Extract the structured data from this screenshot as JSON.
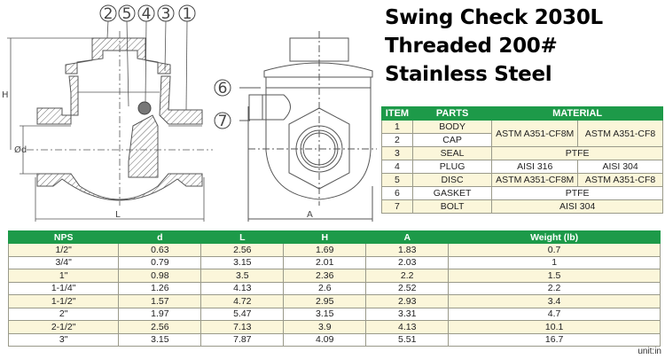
{
  "title": {
    "line1": "Swing Check 2030L",
    "line2": "Threaded 200#",
    "line3": "Stainless Steel"
  },
  "drawing": {
    "callouts_section": [
      "2",
      "5",
      "4",
      "3",
      "1"
    ],
    "callouts_side": [
      "6",
      "7"
    ],
    "dim_labels": {
      "H": "H",
      "d": "Ød",
      "L": "L",
      "A": "A"
    }
  },
  "colors": {
    "header_green": "#1d9a49",
    "row_cream": "#fbf6da"
  },
  "materials_table": {
    "headers": [
      "ITEM",
      "PARTS",
      "MATERIAL"
    ],
    "rows": [
      {
        "item": "1",
        "part": "BODY"
      },
      {
        "item": "2",
        "part": "CAP"
      },
      {
        "item": "3",
        "part": "SEAL"
      },
      {
        "item": "4",
        "part": "PLUG"
      },
      {
        "item": "5",
        "part": "DISC"
      },
      {
        "item": "6",
        "part": "GASKET"
      },
      {
        "item": "7",
        "part": "BOLT"
      }
    ],
    "body_cap_material": [
      "ASTM A351-CF8M",
      "ASTM A351-CF8"
    ],
    "seal_material": "PTFE",
    "plug_material": [
      "AISI 316",
      "AISI 304"
    ],
    "disc_material": [
      "ASTM A351-CF8M",
      "ASTM A351-CF8"
    ],
    "gasket_material": "PTFE",
    "bolt_material": "AISI 304"
  },
  "dimension_table": {
    "headers": [
      "NPS",
      "d",
      "L",
      "H",
      "A",
      "Weight (lb)"
    ],
    "rows": [
      [
        "1/2\"",
        "0.63",
        "2.56",
        "1.69",
        "1.83",
        "0.7"
      ],
      [
        "3/4\"",
        "0.79",
        "3.15",
        "2.01",
        "2.03",
        "1"
      ],
      [
        "1\"",
        "0.98",
        "3.5",
        "2.36",
        "2.2",
        "1.5"
      ],
      [
        "1-1/4\"",
        "1.26",
        "4.13",
        "2.6",
        "2.52",
        "2.2"
      ],
      [
        "1-1/2\"",
        "1.57",
        "4.72",
        "2.95",
        "2.93",
        "3.4"
      ],
      [
        "2\"",
        "1.97",
        "5.47",
        "3.15",
        "3.31",
        "4.7"
      ],
      [
        "2-1/2\"",
        "2.56",
        "7.13",
        "3.9",
        "4.13",
        "10.1"
      ],
      [
        "3\"",
        "3.15",
        "7.87",
        "4.09",
        "5.51",
        "16.7"
      ]
    ],
    "unit": "unit:in"
  }
}
